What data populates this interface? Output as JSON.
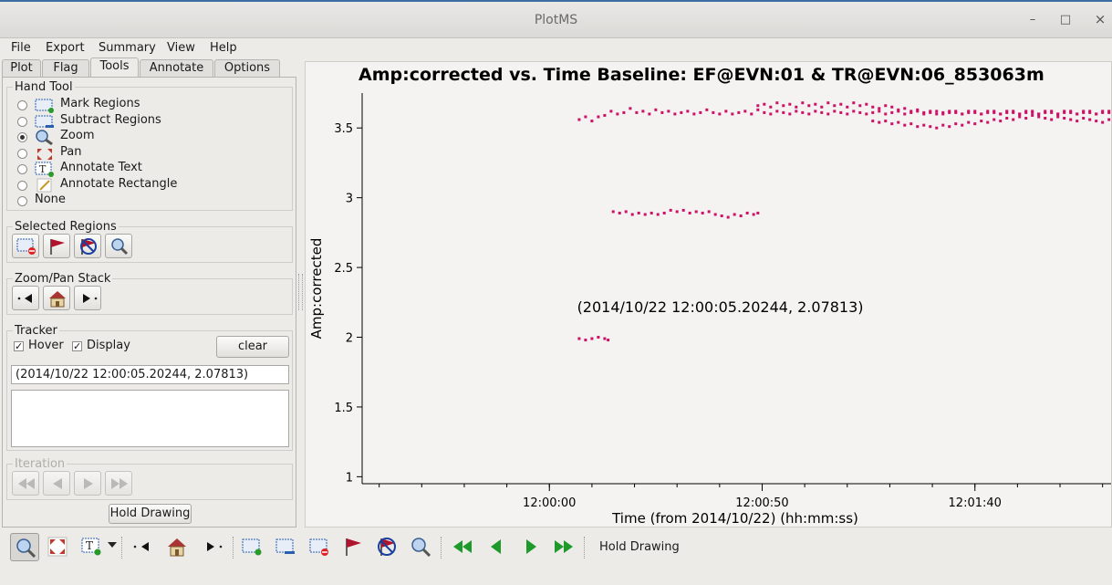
{
  "window": {
    "title": "PlotMS",
    "min_glyph": "–",
    "max_glyph": "□",
    "close_glyph": "×"
  },
  "menu": {
    "file": "File",
    "export": "Export",
    "summary": "Summary",
    "view": "View",
    "help": "Help"
  },
  "tabs": {
    "plot": "Plot",
    "flag": "Flag",
    "tools": "Tools",
    "annotate": "Annotate",
    "options": "Options",
    "active": "Tools"
  },
  "hand_tool": {
    "title": "Hand Tool",
    "options": [
      "Mark Regions",
      "Subtract Regions",
      "Zoom",
      "Pan",
      "Annotate Text",
      "Annotate Rectangle",
      "None"
    ],
    "selected": "Zoom"
  },
  "selected_regions": {
    "title": "Selected Regions"
  },
  "zoom_pan_stack": {
    "title": "Zoom/Pan Stack"
  },
  "tracker": {
    "title": "Tracker",
    "hover_label": "Hover",
    "hover_checked": true,
    "display_label": "Display",
    "display_checked": true,
    "clear_label": "clear",
    "value": "(2014/10/22 12:00:05.20244, 2.07813)"
  },
  "iteration": {
    "title": "Iteration"
  },
  "hold_drawing": {
    "panel_label": "Hold Drawing",
    "toolbar_label": "Hold Drawing"
  },
  "chart_data": {
    "type": "scatter",
    "title": "Amp:corrected vs. Time Baseline: EF@EVN:01 & TR@EVN:06_853063m",
    "xlabel": "Time (from 2014/10/22) (hh:mm:ss)",
    "ylabel": "Amp:corrected",
    "x_unit": "seconds after 12:00:00",
    "xlim": [
      -44,
      132
    ],
    "ylim": [
      0.95,
      3.75
    ],
    "x_ticks": [
      {
        "value": 0,
        "label": "12:00:00"
      },
      {
        "value": 50,
        "label": "12:00:50"
      },
      {
        "value": 100,
        "label": "12:01:40"
      }
    ],
    "y_ticks": [
      {
        "value": 1,
        "label": "1"
      },
      {
        "value": 1.5,
        "label": "1.5"
      },
      {
        "value": 2,
        "label": "2"
      },
      {
        "value": 2.5,
        "label": "2.5"
      },
      {
        "value": 3,
        "label": "3"
      },
      {
        "value": 3.5,
        "label": "3.5"
      }
    ],
    "point_color": "#cc1166",
    "annotation": {
      "text": "(2014/10/22 12:00:05.20244, 2.07813)",
      "x": 6.5,
      "y": 2.18
    },
    "series": [
      {
        "points": [
          [
            7.0,
            3.56
          ],
          [
            8.5,
            3.58
          ],
          [
            10.0,
            3.55
          ],
          [
            11.5,
            3.58
          ],
          [
            13.0,
            3.59
          ],
          [
            14.5,
            3.62
          ],
          [
            16.0,
            3.6
          ],
          [
            17.5,
            3.61
          ],
          [
            19.0,
            3.64
          ],
          [
            20.5,
            3.61
          ],
          [
            22.0,
            3.62
          ],
          [
            23.5,
            3.6
          ],
          [
            25.0,
            3.63
          ],
          [
            26.5,
            3.61
          ],
          [
            28.0,
            3.62
          ],
          [
            29.5,
            3.6
          ],
          [
            31.0,
            3.61
          ],
          [
            32.5,
            3.62
          ],
          [
            34.0,
            3.6
          ],
          [
            35.5,
            3.61
          ],
          [
            37.0,
            3.63
          ],
          [
            38.5,
            3.61
          ],
          [
            40.0,
            3.6
          ],
          [
            41.5,
            3.62
          ],
          [
            43.0,
            3.6
          ],
          [
            44.5,
            3.61
          ],
          [
            46.0,
            3.62
          ],
          [
            47.5,
            3.6
          ],
          [
            49.0,
            3.63
          ],
          [
            50.5,
            3.61
          ],
          [
            52.0,
            3.6
          ],
          [
            53.5,
            3.62
          ],
          [
            55.0,
            3.61
          ],
          [
            56.5,
            3.6
          ],
          [
            58.0,
            3.62
          ],
          [
            59.5,
            3.61
          ],
          [
            61.0,
            3.6
          ],
          [
            62.5,
            3.62
          ],
          [
            64.0,
            3.61
          ],
          [
            65.5,
            3.6
          ],
          [
            67.0,
            3.62
          ],
          [
            68.5,
            3.61
          ],
          [
            70.0,
            3.6
          ],
          [
            71.5,
            3.62
          ],
          [
            73.0,
            3.61
          ],
          [
            74.5,
            3.6
          ],
          [
            76.0,
            3.61
          ],
          [
            77.5,
            3.62
          ],
          [
            79.0,
            3.6
          ],
          [
            80.5,
            3.61
          ],
          [
            82.0,
            3.62
          ],
          [
            83.5,
            3.6
          ],
          [
            85.0,
            3.61
          ],
          [
            86.5,
            3.62
          ],
          [
            88.0,
            3.6
          ],
          [
            89.5,
            3.61
          ],
          [
            91.0,
            3.62
          ],
          [
            92.5,
            3.6
          ],
          [
            94.0,
            3.61
          ],
          [
            95.5,
            3.62
          ],
          [
            97.0,
            3.6
          ],
          [
            98.5,
            3.61
          ],
          [
            100.0,
            3.62
          ],
          [
            101.5,
            3.6
          ],
          [
            103.0,
            3.61
          ],
          [
            104.5,
            3.62
          ],
          [
            106.0,
            3.6
          ],
          [
            107.5,
            3.61
          ],
          [
            109.0,
            3.62
          ],
          [
            110.5,
            3.6
          ],
          [
            112.0,
            3.61
          ],
          [
            113.5,
            3.62
          ],
          [
            115.0,
            3.6
          ],
          [
            116.5,
            3.61
          ],
          [
            118.0,
            3.62
          ],
          [
            119.5,
            3.6
          ],
          [
            121.0,
            3.61
          ],
          [
            122.5,
            3.62
          ],
          [
            124.0,
            3.6
          ],
          [
            125.5,
            3.61
          ],
          [
            127.0,
            3.62
          ],
          [
            128.5,
            3.6
          ],
          [
            130.0,
            3.61
          ],
          [
            131.5,
            3.62
          ]
        ]
      },
      {
        "points": [
          [
            49.0,
            3.66
          ],
          [
            50.5,
            3.67
          ],
          [
            52.0,
            3.65
          ],
          [
            53.5,
            3.68
          ],
          [
            55.0,
            3.66
          ],
          [
            56.5,
            3.67
          ],
          [
            58.0,
            3.65
          ],
          [
            59.5,
            3.68
          ],
          [
            61.0,
            3.66
          ],
          [
            62.5,
            3.67
          ],
          [
            64.0,
            3.65
          ],
          [
            65.5,
            3.68
          ],
          [
            67.0,
            3.66
          ],
          [
            68.5,
            3.67
          ],
          [
            70.0,
            3.65
          ],
          [
            71.5,
            3.68
          ],
          [
            73.0,
            3.66
          ],
          [
            74.5,
            3.67
          ],
          [
            76.0,
            3.65
          ],
          [
            77.5,
            3.64
          ],
          [
            79.0,
            3.66
          ],
          [
            80.5,
            3.65
          ],
          [
            82.0,
            3.63
          ],
          [
            83.5,
            3.64
          ],
          [
            85.0,
            3.62
          ],
          [
            86.5,
            3.63
          ],
          [
            88.0,
            3.61
          ],
          [
            89.5,
            3.62
          ],
          [
            91.0,
            3.6
          ],
          [
            92.5,
            3.61
          ],
          [
            94.0,
            3.62
          ],
          [
            95.5,
            3.61
          ],
          [
            97.0,
            3.6
          ],
          [
            98.5,
            3.62
          ],
          [
            100.0,
            3.61
          ],
          [
            101.5,
            3.6
          ],
          [
            103.0,
            3.62
          ],
          [
            104.5,
            3.61
          ],
          [
            106.0,
            3.6
          ],
          [
            107.5,
            3.62
          ],
          [
            109.0,
            3.61
          ],
          [
            110.5,
            3.6
          ],
          [
            112.0,
            3.62
          ],
          [
            113.5,
            3.61
          ],
          [
            115.0,
            3.6
          ],
          [
            116.5,
            3.62
          ],
          [
            118.0,
            3.61
          ],
          [
            119.5,
            3.6
          ],
          [
            121.0,
            3.62
          ],
          [
            122.5,
            3.61
          ],
          [
            124.0,
            3.6
          ],
          [
            125.5,
            3.62
          ],
          [
            127.0,
            3.61
          ],
          [
            128.5,
            3.6
          ],
          [
            130.0,
            3.62
          ],
          [
            131.5,
            3.61
          ]
        ]
      },
      {
        "points": [
          [
            76.0,
            3.55
          ],
          [
            77.5,
            3.54
          ],
          [
            79.0,
            3.55
          ],
          [
            80.5,
            3.53
          ],
          [
            82.0,
            3.54
          ],
          [
            83.5,
            3.52
          ],
          [
            85.0,
            3.53
          ],
          [
            86.5,
            3.51
          ],
          [
            88.0,
            3.52
          ],
          [
            89.5,
            3.51
          ],
          [
            91.0,
            3.5
          ],
          [
            92.5,
            3.52
          ],
          [
            94.0,
            3.51
          ],
          [
            95.5,
            3.53
          ],
          [
            97.0,
            3.52
          ],
          [
            98.5,
            3.54
          ],
          [
            100.0,
            3.53
          ],
          [
            101.5,
            3.55
          ],
          [
            103.0,
            3.54
          ],
          [
            104.5,
            3.56
          ],
          [
            106.0,
            3.55
          ],
          [
            107.5,
            3.57
          ],
          [
            109.0,
            3.56
          ],
          [
            110.5,
            3.58
          ],
          [
            112.0,
            3.57
          ],
          [
            113.5,
            3.59
          ],
          [
            115.0,
            3.58
          ],
          [
            116.5,
            3.57
          ],
          [
            118.0,
            3.56
          ],
          [
            119.5,
            3.58
          ],
          [
            121.0,
            3.57
          ],
          [
            122.5,
            3.56
          ],
          [
            124.0,
            3.55
          ],
          [
            125.5,
            3.57
          ],
          [
            127.0,
            3.56
          ],
          [
            128.5,
            3.55
          ],
          [
            130.0,
            3.54
          ],
          [
            131.5,
            3.56
          ]
        ]
      },
      {
        "points": [
          [
            15.0,
            2.9
          ],
          [
            16.5,
            2.89
          ],
          [
            18.0,
            2.9
          ],
          [
            19.5,
            2.88
          ],
          [
            21.0,
            2.89
          ],
          [
            22.5,
            2.88
          ],
          [
            24.0,
            2.89
          ],
          [
            25.5,
            2.88
          ],
          [
            27.0,
            2.89
          ],
          [
            28.5,
            2.91
          ],
          [
            30.0,
            2.9
          ],
          [
            31.5,
            2.91
          ],
          [
            33.0,
            2.89
          ],
          [
            34.5,
            2.9
          ],
          [
            36.0,
            2.89
          ],
          [
            37.5,
            2.9
          ],
          [
            39.0,
            2.88
          ],
          [
            40.5,
            2.87
          ],
          [
            42.0,
            2.86
          ],
          [
            43.5,
            2.88
          ],
          [
            45.0,
            2.87
          ],
          [
            46.5,
            2.89
          ],
          [
            48.0,
            2.88
          ],
          [
            49.0,
            2.89
          ]
        ]
      },
      {
        "points": [
          [
            7.0,
            1.99
          ],
          [
            8.5,
            1.98
          ],
          [
            10.0,
            1.99
          ],
          [
            11.5,
            2.0
          ],
          [
            13.0,
            1.99
          ],
          [
            13.8,
            1.98
          ]
        ]
      }
    ]
  },
  "toolbar": {
    "hold_drawing": "Hold Drawing"
  }
}
